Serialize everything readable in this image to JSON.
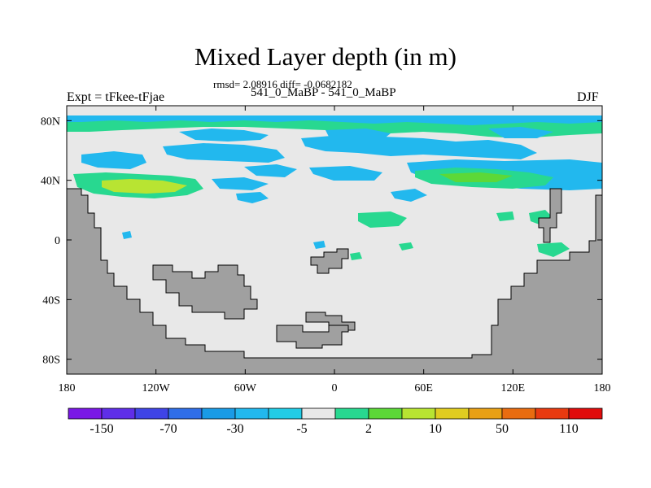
{
  "title": "Mixed Layer depth (in m)",
  "subtitle": "rmsd= 2.08916 diff= -0.0682182",
  "center_label": "541_0_MaBP - 541_0_MaBP",
  "left_label": "Expt = tFkee-tFjae",
  "right_label": "DJF",
  "map": {
    "lon_range": [
      -180,
      180
    ],
    "lat_range": [
      -90,
      90
    ],
    "background_color": "#e8e8e8",
    "land_color": "#a0a0a0",
    "x_ticks": [
      {
        "value": -180,
        "label": "180"
      },
      {
        "value": -120,
        "label": "120W"
      },
      {
        "value": -60,
        "label": "60W"
      },
      {
        "value": 0,
        "label": "0"
      },
      {
        "value": 60,
        "label": "60E"
      },
      {
        "value": 120,
        "label": "120E"
      },
      {
        "value": 180,
        "label": "180"
      }
    ],
    "y_ticks": [
      {
        "value": 80,
        "label": "80N"
      },
      {
        "value": 40,
        "label": "40N"
      },
      {
        "value": 0,
        "label": "0"
      },
      {
        "value": -40,
        "label": "40S"
      },
      {
        "value": -80,
        "label": "80S"
      }
    ]
  },
  "colorbar": {
    "colors": [
      "#7a17e6",
      "#5f2ee8",
      "#3f44e6",
      "#2f6ee8",
      "#1a9be6",
      "#22b8ee",
      "#22cce6",
      "#e8e8e8",
      "#28d890",
      "#5cd838",
      "#b8e432",
      "#e0cc20",
      "#e8a016",
      "#e86c10",
      "#e83a10",
      "#e00c0c"
    ],
    "labels": [
      "-150",
      "-70",
      "-30",
      "-5",
      "2",
      "10",
      "50",
      "110"
    ]
  }
}
